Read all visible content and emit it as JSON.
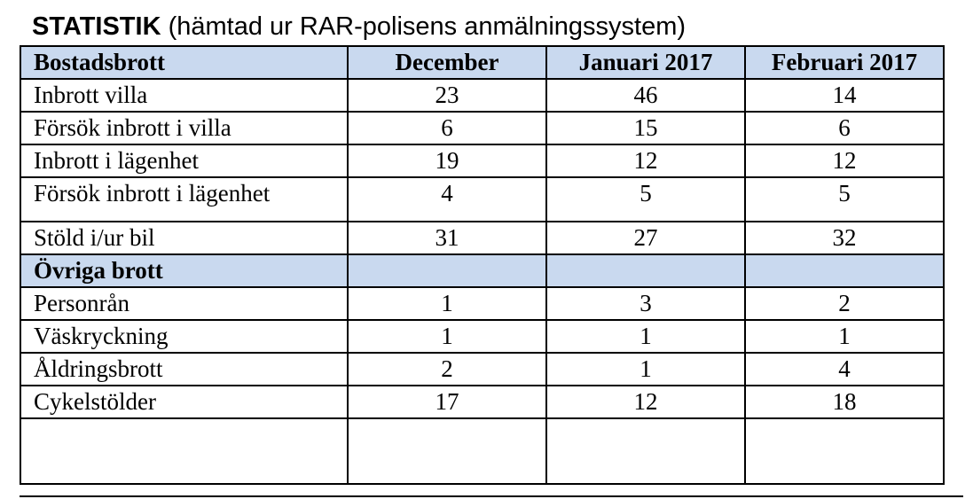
{
  "title": {
    "bold": "STATISTIK",
    "rest": " (hämtad ur RAR-polisens anmälningssystem)"
  },
  "table": {
    "header": [
      "Bostadsbrott",
      "December",
      "Januari 2017",
      "Februari 2017"
    ],
    "bostadsbrott_rows": [
      {
        "label": "Inbrott villa",
        "dec": "23",
        "jan": "46",
        "feb": "14"
      },
      {
        "label": "Försök inbrott i villa",
        "dec": "6",
        "jan": "15",
        "feb": "6"
      },
      {
        "label": "Inbrott i lägenhet",
        "dec": "19",
        "jan": "12",
        "feb": "12"
      },
      {
        "label": "Försök inbrott i lägenhet",
        "dec": "4",
        "jan": "5",
        "feb": "5"
      },
      {
        "label": "Stöld i/ur bil",
        "dec": "31",
        "jan": "27",
        "feb": "32"
      }
    ],
    "section2_label": "Övriga brott",
    "ovriga_rows": [
      {
        "label": "Personrån",
        "dec": "1",
        "jan": "3",
        "feb": "2"
      },
      {
        "label": "Väskryckning",
        "dec": "1",
        "jan": "1",
        "feb": "1"
      },
      {
        "label": "Åldringsbrott",
        "dec": "2",
        "jan": "1",
        "feb": "4"
      },
      {
        "label": "Cykelstölder",
        "dec": "17",
        "jan": "12",
        "feb": "18"
      }
    ]
  },
  "colors": {
    "section_header_bg": "#c9d9ef",
    "border": "#000000"
  }
}
